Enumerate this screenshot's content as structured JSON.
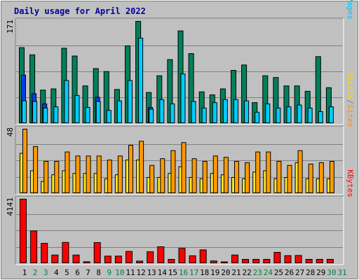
{
  "chart_data": {
    "type": "bar",
    "title": "Daily usage for April 2022",
    "categories": [
      "1",
      "2",
      "3",
      "4",
      "5",
      "6",
      "7",
      "8",
      "9",
      "10",
      "11",
      "12",
      "13",
      "14",
      "15",
      "16",
      "17",
      "18",
      "19",
      "20",
      "21",
      "22",
      "23",
      "24",
      "25",
      "26",
      "27",
      "28",
      "29",
      "30",
      "31"
    ],
    "weekend_days": [
      "2",
      "3",
      "9",
      "10",
      "16",
      "17",
      "23",
      "24",
      "30",
      "31"
    ],
    "panels": [
      {
        "id": "top",
        "max_label": "171",
        "ymax": 171,
        "right_label": {
          "parts": [
            "Pages",
            "/",
            "Files",
            "/",
            "Hits"
          ],
          "colors": [
            "#00c0ff",
            "#808080",
            "#0030e0",
            "#808080",
            "#008060"
          ]
        },
        "series": [
          {
            "name": "Hits",
            "color": "#00805c",
            "values": [
              127,
              115,
              56,
              58,
              126,
              113,
              63,
              92,
              87,
              57,
              130,
              171,
              52,
              80,
              107,
              155,
              117,
              53,
              48,
              58,
              89,
              98,
              35,
              80,
              77,
              63,
              63,
              54,
              112,
              60,
              null
            ]
          },
          {
            "name": "Files",
            "color": "#0040e0",
            "values": [
              81,
              50,
              33,
              0,
              0,
              0,
              0,
              44,
              0,
              0,
              0,
              0,
              27,
              0,
              0,
              0,
              0,
              0,
              0,
              0,
              0,
              0,
              0,
              0,
              0,
              0,
              0,
              0,
              0,
              0,
              null
            ]
          },
          {
            "name": "Pages",
            "color": "#00ccff",
            "values": [
              38,
              37,
              26,
              28,
              72,
              47,
              27,
              37,
              22,
              38,
              72,
              143,
              24,
              40,
              33,
              83,
              37,
              26,
              35,
              40,
              40,
              38,
              19,
              33,
              26,
              28,
              31,
              26,
              20,
              28,
              null
            ]
          }
        ]
      },
      {
        "id": "middle",
        "max_label": "48",
        "ymax": 48,
        "right_label": {
          "parts": [
            "Sites",
            "/",
            "Visits"
          ],
          "colors": [
            "#ff8c00",
            "#808080",
            "#ffd700"
          ]
        },
        "series": [
          {
            "name": "Visits",
            "color": "#ffea20",
            "values": [
              30,
              17,
              9,
              14,
              17,
              15,
              15,
              15,
              11,
              14,
              25,
              25,
              12,
              12,
              15,
              20,
              12,
              11,
              15,
              14,
              12,
              11,
              16,
              17,
              11,
              12,
              23,
              11,
              11,
              11,
              null
            ]
          },
          {
            "name": "Sites",
            "color": "#ff9a00",
            "values": [
              48,
              35,
              24,
              24,
              31,
              28,
              28,
              28,
              25,
              28,
              36,
              39,
              21,
              26,
              32,
              38,
              26,
              24,
              28,
              27,
              24,
              23,
              31,
              31,
              24,
              21,
              32,
              22,
              23,
              24,
              null
            ]
          }
        ]
      },
      {
        "id": "bottom",
        "max_label": "4141",
        "ymax": 4141,
        "right_label": {
          "parts": [
            "KBytes"
          ],
          "colors": [
            "#ff0000"
          ]
        },
        "series": [
          {
            "name": "KBytes",
            "color": "#ff0000",
            "values": [
              4141,
              2100,
              1300,
              550,
              1360,
              550,
              120,
              1350,
              480,
              480,
              780,
              160,
              760,
              1080,
              270,
              980,
              500,
              880,
              170,
              110,
              550,
              270,
              270,
              270,
              720,
              510,
              520,
              270,
              270,
              270,
              null
            ]
          }
        ]
      }
    ]
  }
}
